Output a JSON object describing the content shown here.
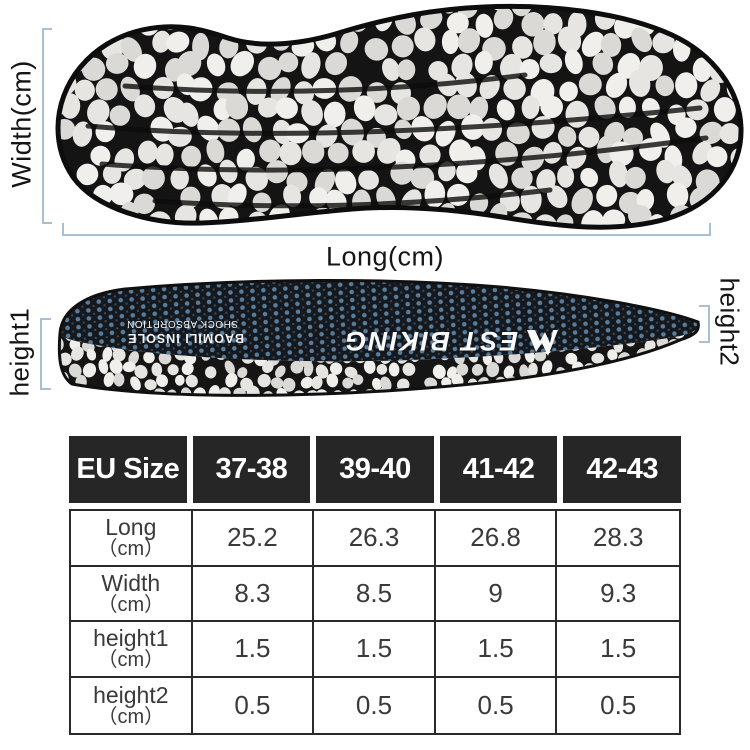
{
  "page": {
    "background": "#ffffff"
  },
  "diagram": {
    "accent_color": "#a9c0d4",
    "insole_base_color": "#141414",
    "pebble_colors": [
      "#f1efeb",
      "#e7e5e1",
      "#dbd9d5"
    ],
    "dot_color": "#587d9c",
    "top_view": {
      "width_label": "Width(cm)",
      "long_label": "Long(cm)"
    },
    "side_view": {
      "height1_label": "height1",
      "height2_label": "height2",
      "brand_logo": "W",
      "brand_text": "EST BIKING",
      "print_line1": "BAOMILI INSOLE",
      "print_line2": "SHOCK ABSORPTION"
    }
  },
  "size_table": {
    "header_bg": "#262626",
    "header_text_color": "#ffffff",
    "border_color": "#2a2a2a",
    "header": [
      "EU Size",
      "37-38",
      "39-40",
      "41-42",
      "42-43"
    ],
    "rows": [
      {
        "label": "Long",
        "unit": "（cm）",
        "values": [
          "25.2",
          "26.3",
          "26.8",
          "28.3"
        ]
      },
      {
        "label": "Width",
        "unit": "（cm）",
        "values": [
          "8.3",
          "8.5",
          "9",
          "9.3"
        ]
      },
      {
        "label": "height1",
        "unit": "（cm）",
        "values": [
          "1.5",
          "1.5",
          "1.5",
          "1.5"
        ]
      },
      {
        "label": "height2",
        "unit": "（cm）",
        "values": [
          "0.5",
          "0.5",
          "0.5",
          "0.5"
        ]
      }
    ]
  },
  "chart_data": {
    "type": "table",
    "columns": [
      "EU Size",
      "37-38",
      "39-40",
      "41-42",
      "42-43"
    ],
    "rows": [
      [
        "Long（cm）",
        25.2,
        26.3,
        26.8,
        28.3
      ],
      [
        "Width（cm）",
        8.3,
        8.5,
        9,
        9.3
      ],
      [
        "height1（cm）",
        1.5,
        1.5,
        1.5,
        1.5
      ],
      [
        "height2（cm）",
        0.5,
        0.5,
        0.5,
        0.5
      ]
    ]
  }
}
